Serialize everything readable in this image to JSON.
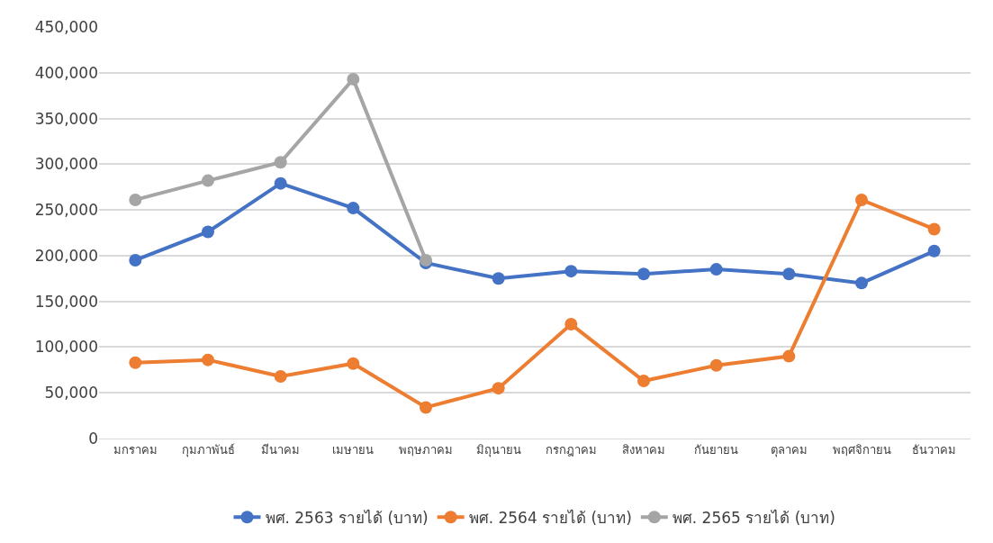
{
  "chart_data": {
    "type": "line",
    "categories": [
      "มกราคม",
      "กุมภาพันธ์",
      "มีนาคม",
      "เมษายน",
      "พฤษภาคม",
      "มิถุนายน",
      "กรกฎาคม",
      "สิงหาคม",
      "กันยายน",
      "ตุลาคม",
      "พฤศจิกายน",
      "ธันวาคม"
    ],
    "series": [
      {
        "name": "พศ. 2563 รายได้ (บาท)",
        "color": "#4472c4",
        "values": [
          195000,
          226000,
          279000,
          252000,
          192000,
          175000,
          183000,
          180000,
          185000,
          180000,
          170000,
          205000
        ]
      },
      {
        "name": "พศ. 2564 รายได้ (บาท)",
        "color": "#ed7d31",
        "values": [
          83000,
          86000,
          68000,
          82000,
          34000,
          55000,
          125000,
          63000,
          80000,
          90000,
          261000,
          229000
        ]
      },
      {
        "name": "พศ. 2565 รายได้ (บาท)",
        "color": "#a5a5a5",
        "values": [
          261000,
          282000,
          302000,
          393000,
          195000,
          null,
          null,
          null,
          null,
          null,
          null,
          null
        ]
      }
    ],
    "ylim": [
      0,
      450000
    ],
    "yticks": [
      {
        "value": 0,
        "label": "0"
      },
      {
        "value": 50000,
        "label": "50,000"
      },
      {
        "value": 100000,
        "label": "100,000"
      },
      {
        "value": 150000,
        "label": "150,000"
      },
      {
        "value": 200000,
        "label": "200,000"
      },
      {
        "value": 250000,
        "label": "250,000"
      },
      {
        "value": 300000,
        "label": "300,000"
      },
      {
        "value": 350000,
        "label": "350,000"
      },
      {
        "value": 400000,
        "label": "400,000"
      },
      {
        "value": 450000,
        "label": "450,000"
      }
    ],
    "grid": "y",
    "legend": "bottom",
    "marker": "circle",
    "line_style": "solid"
  }
}
